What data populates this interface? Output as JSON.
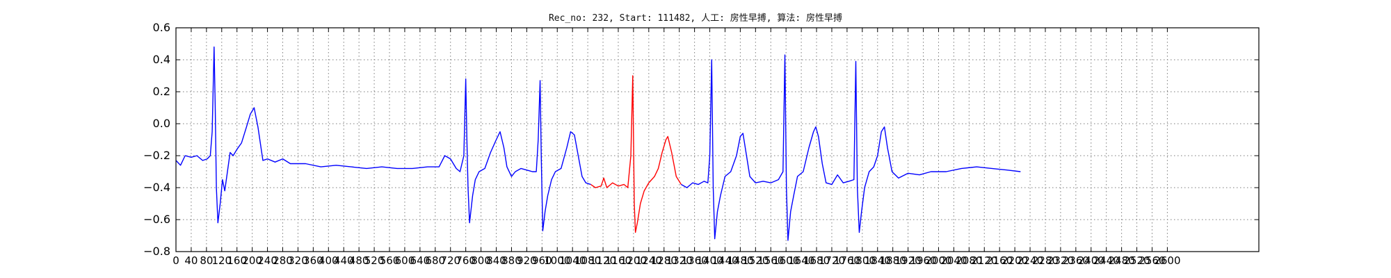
{
  "chart_data": {
    "type": "line",
    "title": "Rec_no: 232, Start: 111482, 人工: 房性早搏, 算法: 房性早搏",
    "xlabel": "",
    "ylabel": "",
    "xlim": [
      0,
      2840
    ],
    "ylim": [
      -0.8,
      0.6
    ],
    "yticks": [
      -0.8,
      -0.6,
      -0.4,
      -0.2,
      0.0,
      0.2,
      0.4,
      0.6
    ],
    "ytick_labels": [
      "−0.8",
      "−0.6",
      "−0.4",
      "−0.2",
      "0.0",
      "0.2",
      "0.4",
      "0.6"
    ],
    "xtick_step": 40,
    "xtick_max": 2600,
    "grid": true,
    "series": [
      {
        "color": "#0000ff",
        "points": [
          [
            0,
            -0.23
          ],
          [
            12,
            -0.26
          ],
          [
            24,
            -0.2
          ],
          [
            40,
            -0.21
          ],
          [
            55,
            -0.2
          ],
          [
            70,
            -0.23
          ],
          [
            82,
            -0.22
          ],
          [
            90,
            -0.2
          ],
          [
            95,
            -0.05
          ],
          [
            100,
            0.48
          ],
          [
            103,
            0.1
          ],
          [
            106,
            -0.4
          ],
          [
            110,
            -0.62
          ],
          [
            116,
            -0.5
          ],
          [
            122,
            -0.35
          ],
          [
            128,
            -0.42
          ],
          [
            135,
            -0.3
          ],
          [
            142,
            -0.18
          ],
          [
            150,
            -0.2
          ],
          [
            160,
            -0.16
          ],
          [
            172,
            -0.12
          ],
          [
            185,
            -0.02
          ],
          [
            195,
            0.06
          ],
          [
            205,
            0.1
          ],
          [
            215,
            -0.02
          ],
          [
            228,
            -0.23
          ],
          [
            240,
            -0.22
          ],
          [
            260,
            -0.24
          ],
          [
            280,
            -0.22
          ],
          [
            300,
            -0.25
          ],
          [
            340,
            -0.25
          ],
          [
            380,
            -0.27
          ],
          [
            420,
            -0.26
          ],
          [
            460,
            -0.27
          ],
          [
            500,
            -0.28
          ],
          [
            540,
            -0.27
          ],
          [
            580,
            -0.28
          ],
          [
            620,
            -0.28
          ],
          [
            660,
            -0.27
          ],
          [
            690,
            -0.27
          ],
          [
            705,
            -0.2
          ],
          [
            720,
            -0.22
          ],
          [
            735,
            -0.28
          ],
          [
            745,
            -0.3
          ],
          [
            755,
            -0.2
          ],
          [
            760,
            0.28
          ],
          [
            763,
            -0.1
          ],
          [
            766,
            -0.4
          ],
          [
            770,
            -0.62
          ],
          [
            778,
            -0.45
          ],
          [
            785,
            -0.35
          ],
          [
            795,
            -0.3
          ],
          [
            810,
            -0.28
          ],
          [
            825,
            -0.18
          ],
          [
            840,
            -0.1
          ],
          [
            850,
            -0.05
          ],
          [
            860,
            -0.15
          ],
          [
            868,
            -0.27
          ],
          [
            880,
            -0.33
          ],
          [
            890,
            -0.3
          ],
          [
            905,
            -0.28
          ],
          [
            920,
            -0.29
          ],
          [
            935,
            -0.3
          ],
          [
            945,
            -0.3
          ],
          [
            950,
            -0.1
          ],
          [
            955,
            0.27
          ],
          [
            958,
            -0.2
          ],
          [
            962,
            -0.67
          ],
          [
            968,
            -0.55
          ],
          [
            975,
            -0.45
          ],
          [
            985,
            -0.35
          ],
          [
            995,
            -0.3
          ],
          [
            1010,
            -0.28
          ],
          [
            1025,
            -0.15
          ],
          [
            1035,
            -0.05
          ],
          [
            1045,
            -0.07
          ],
          [
            1055,
            -0.2
          ],
          [
            1065,
            -0.33
          ],
          [
            1075,
            -0.37
          ],
          [
            1088,
            -0.38
          ]
        ]
      },
      {
        "color": "#ff0000",
        "points": [
          [
            1088,
            -0.38
          ],
          [
            1100,
            -0.4
          ],
          [
            1115,
            -0.39
          ],
          [
            1122,
            -0.34
          ],
          [
            1130,
            -0.4
          ],
          [
            1145,
            -0.37
          ],
          [
            1160,
            -0.39
          ],
          [
            1175,
            -0.38
          ],
          [
            1185,
            -0.4
          ],
          [
            1193,
            -0.2
          ],
          [
            1198,
            0.3
          ],
          [
            1202,
            -0.5
          ],
          [
            1205,
            -0.68
          ],
          [
            1210,
            -0.62
          ],
          [
            1218,
            -0.5
          ],
          [
            1228,
            -0.42
          ],
          [
            1240,
            -0.37
          ],
          [
            1255,
            -0.33
          ],
          [
            1265,
            -0.28
          ],
          [
            1275,
            -0.18
          ],
          [
            1285,
            -0.1
          ],
          [
            1290,
            -0.08
          ],
          [
            1300,
            -0.18
          ],
          [
            1312,
            -0.33
          ],
          [
            1325,
            -0.38
          ]
        ]
      },
      {
        "color": "#0000ff",
        "points": [
          [
            1325,
            -0.38
          ],
          [
            1340,
            -0.4
          ],
          [
            1355,
            -0.37
          ],
          [
            1370,
            -0.38
          ],
          [
            1385,
            -0.36
          ],
          [
            1395,
            -0.37
          ],
          [
            1400,
            -0.2
          ],
          [
            1405,
            0.4
          ],
          [
            1409,
            -0.4
          ],
          [
            1413,
            -0.72
          ],
          [
            1420,
            -0.55
          ],
          [
            1428,
            -0.45
          ],
          [
            1440,
            -0.33
          ],
          [
            1455,
            -0.3
          ],
          [
            1470,
            -0.2
          ],
          [
            1480,
            -0.08
          ],
          [
            1487,
            -0.06
          ],
          [
            1495,
            -0.18
          ],
          [
            1505,
            -0.33
          ],
          [
            1520,
            -0.37
          ],
          [
            1540,
            -0.36
          ],
          [
            1560,
            -0.37
          ],
          [
            1580,
            -0.35
          ],
          [
            1592,
            -0.3
          ],
          [
            1597,
            0.43
          ],
          [
            1601,
            -0.4
          ],
          [
            1605,
            -0.73
          ],
          [
            1612,
            -0.55
          ],
          [
            1620,
            -0.45
          ],
          [
            1630,
            -0.33
          ],
          [
            1645,
            -0.3
          ],
          [
            1660,
            -0.15
          ],
          [
            1672,
            -0.05
          ],
          [
            1678,
            -0.02
          ],
          [
            1685,
            -0.08
          ],
          [
            1695,
            -0.25
          ],
          [
            1705,
            -0.37
          ],
          [
            1720,
            -0.38
          ],
          [
            1735,
            -0.32
          ],
          [
            1750,
            -0.37
          ],
          [
            1765,
            -0.36
          ],
          [
            1778,
            -0.35
          ],
          [
            1783,
            0.39
          ],
          [
            1787,
            -0.4
          ],
          [
            1792,
            -0.68
          ],
          [
            1798,
            -0.55
          ],
          [
            1806,
            -0.4
          ],
          [
            1818,
            -0.3
          ],
          [
            1830,
            -0.27
          ],
          [
            1840,
            -0.2
          ],
          [
            1850,
            -0.05
          ],
          [
            1858,
            -0.02
          ],
          [
            1866,
            -0.15
          ],
          [
            1878,
            -0.3
          ],
          [
            1895,
            -0.34
          ],
          [
            1920,
            -0.31
          ],
          [
            1950,
            -0.32
          ],
          [
            1980,
            -0.3
          ],
          [
            2020,
            -0.3
          ],
          [
            2060,
            -0.28
          ],
          [
            2100,
            -0.27
          ],
          [
            2140,
            -0.28
          ],
          [
            2180,
            -0.29
          ],
          [
            2215,
            -0.3
          ]
        ]
      }
    ]
  }
}
